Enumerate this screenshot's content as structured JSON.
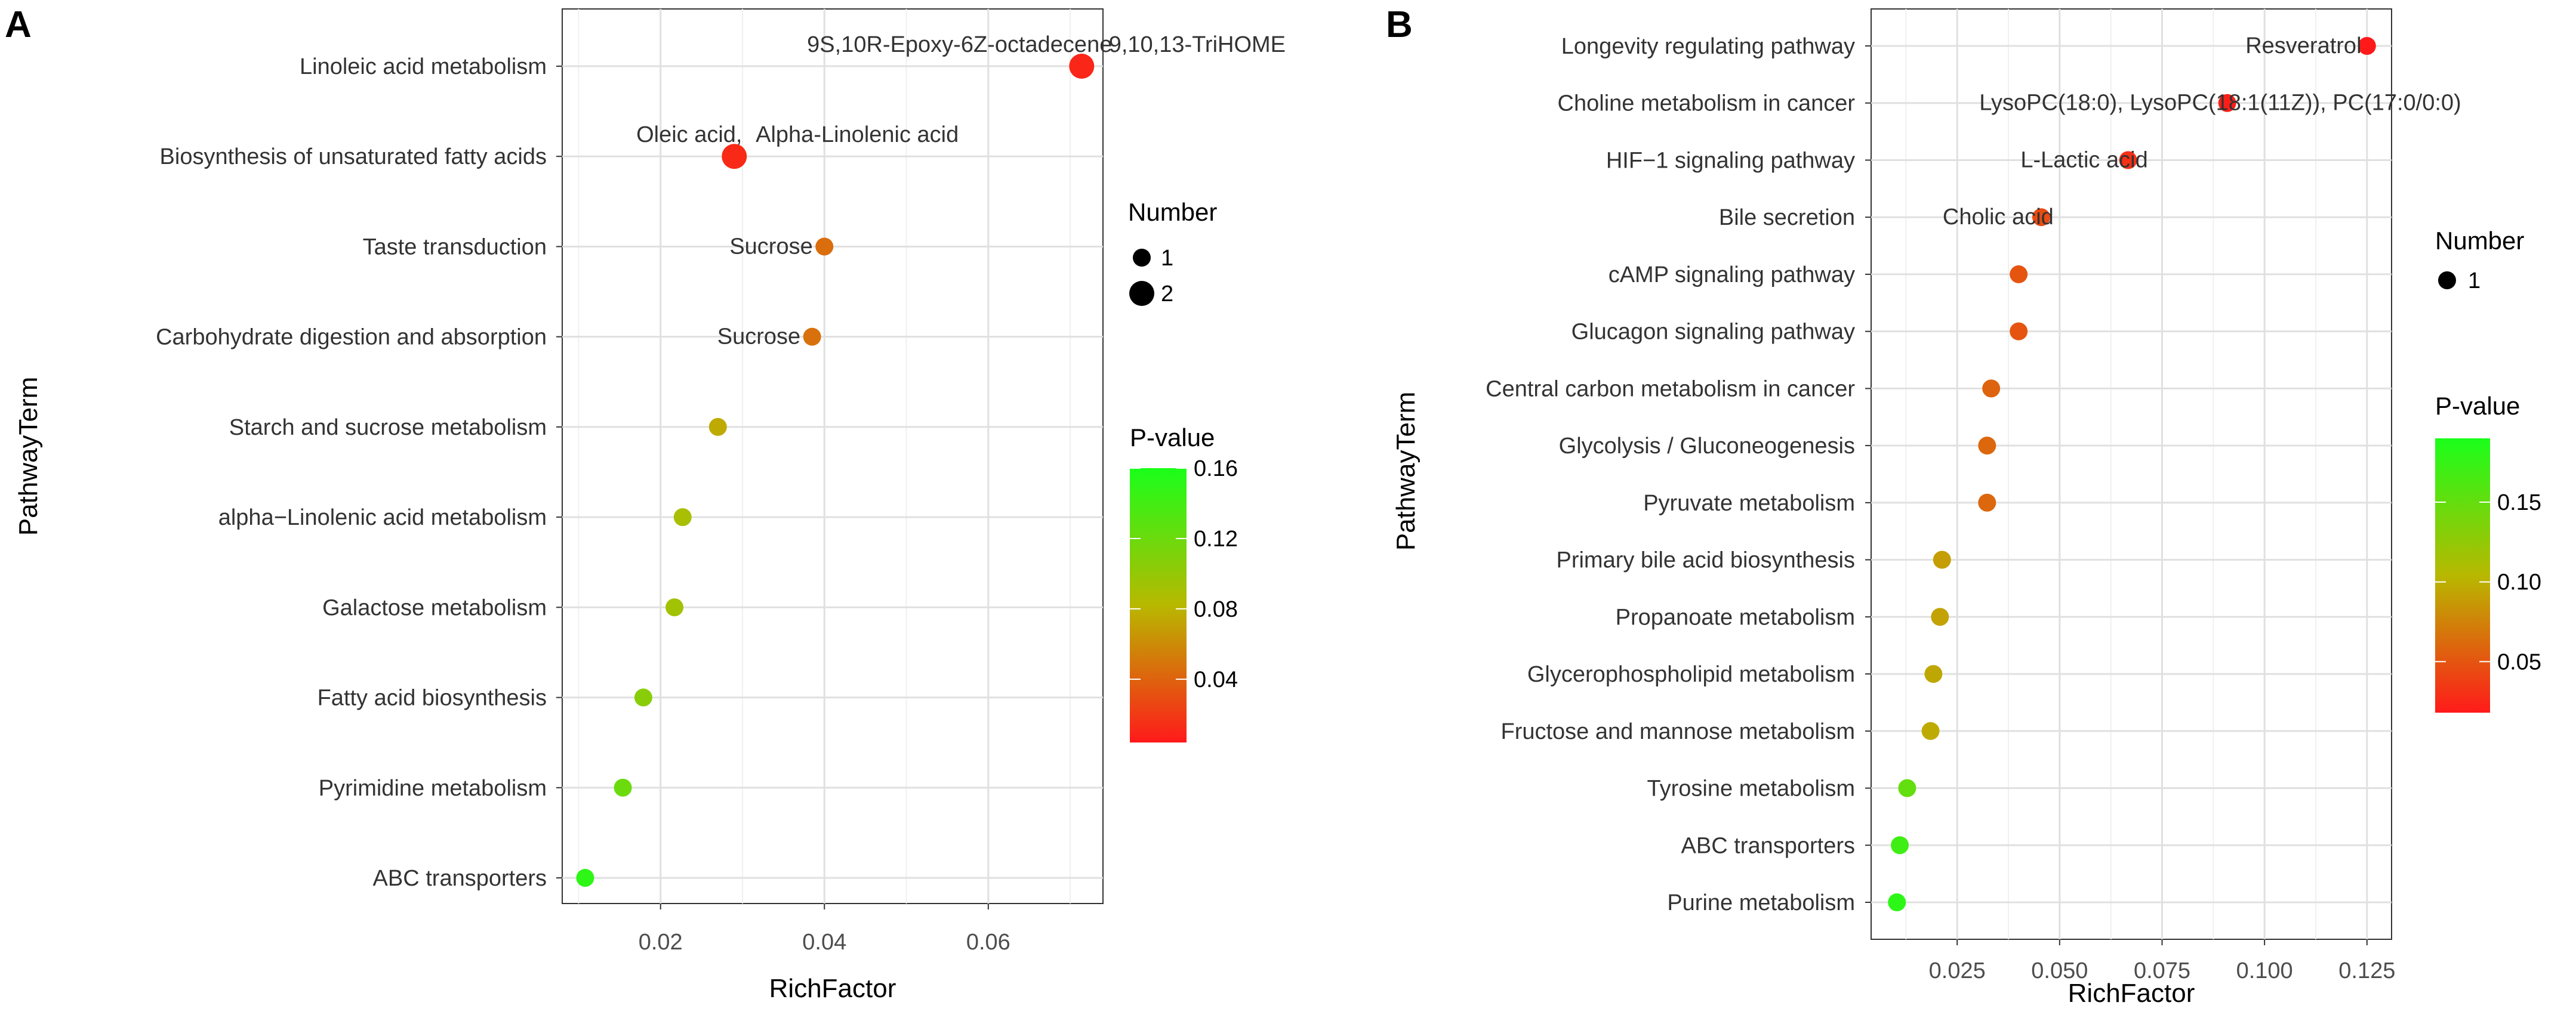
{
  "chart_data": [
    {
      "panel": "A",
      "type": "scatter",
      "title": "",
      "xlabel": "RichFactor",
      "ylabel": "PathwayTerm",
      "xlim": [
        0.008,
        0.074
      ],
      "xticks": [
        0.02,
        0.04,
        0.06
      ],
      "xtick_labels": [
        "0.02",
        "0.04",
        "0.06"
      ],
      "grid": true,
      "categories": [
        "Linoleic acid metabolism",
        "Biosynthesis of unsaturated fatty acids",
        "Taste transduction",
        "Carbohydrate digestion and absorption",
        "Starch and sucrose metabolism",
        "alpha−Linolenic acid metabolism",
        "Galactose metabolism",
        "Fatty acid biosynthesis",
        "Pyrimidine metabolism",
        "ABC transporters"
      ],
      "richfactor": [
        0.0714,
        0.029,
        0.04,
        0.0385,
        0.027,
        0.0227,
        0.0217,
        0.0179,
        0.0154,
        0.0108
      ],
      "number": [
        2,
        2,
        1,
        1,
        1,
        1,
        1,
        1,
        1,
        1
      ],
      "pvalue": [
        0.01,
        0.012,
        0.045,
        0.047,
        0.075,
        0.09,
        0.093,
        0.105,
        0.12,
        0.15
      ],
      "annotations": [
        {
          "category_index": 0,
          "text": "9S,10R-Epoxy-6Z-octadecene",
          "x": 0.0565
        },
        {
          "category_index": 0,
          "text": "9,10,13-TriHOME",
          "x": 0.0855
        },
        {
          "category_index": 1,
          "text": "Oleic acid,",
          "x": 0.0235
        },
        {
          "category_index": 1,
          "text": "Alpha-Linolenic acid",
          "x": 0.044
        },
        {
          "category_index": 2,
          "text": "Sucrose",
          "x": 0.0335
        },
        {
          "category_index": 3,
          "text": "Sucrose",
          "x": 0.032
        }
      ],
      "legend_size": {
        "title": "Number",
        "entries": [
          {
            "label": "1",
            "value": 1
          },
          {
            "label": "2",
            "value": 2
          }
        ]
      },
      "legend_color": {
        "title": "P-value",
        "range": [
          0.004,
          0.16
        ],
        "ticks": [
          0.04,
          0.08,
          0.12,
          0.16
        ],
        "tick_labels": [
          "0.04",
          "0.08",
          "0.12",
          "0.16"
        ],
        "low_color": "#ff1a1a",
        "high_color": "#1aff1a"
      }
    },
    {
      "panel": "B",
      "type": "scatter",
      "title": "",
      "xlabel": "RichFactor",
      "ylabel": "PathwayTerm",
      "xlim": [
        0.004,
        0.131
      ],
      "xticks": [
        0.025,
        0.05,
        0.075,
        0.1,
        0.125
      ],
      "xtick_labels": [
        "0.025",
        "0.050",
        "0.075",
        "0.100",
        "0.125"
      ],
      "grid": true,
      "categories": [
        "Longevity regulating pathway",
        "Choline metabolism in cancer",
        "HIF−1 signaling pathway",
        "Bile secretion",
        "cAMP signaling pathway",
        "Glucagon signaling pathway",
        "Central carbon metabolism in cancer",
        "Glycolysis / Gluconeogenesis",
        "Pyruvate metabolism",
        "Primary bile acid biosynthesis",
        "Propanoate metabolism",
        "Glycerophospholipid metabolism",
        "Fructose and mannose metabolism",
        "Tyrosine metabolism",
        "ABC transporters",
        "Purine metabolism"
      ],
      "richfactor": [
        0.125,
        0.0909,
        0.0667,
        0.0455,
        0.04,
        0.04,
        0.0333,
        0.0323,
        0.0323,
        0.0213,
        0.0208,
        0.0192,
        0.0185,
        0.0128,
        0.011,
        0.0103
      ],
      "number": [
        1,
        1,
        1,
        1,
        1,
        1,
        1,
        1,
        1,
        1,
        1,
        1,
        1,
        1,
        1,
        1
      ],
      "pvalue": [
        0.012,
        0.02,
        0.03,
        0.045,
        0.05,
        0.05,
        0.058,
        0.06,
        0.06,
        0.09,
        0.092,
        0.095,
        0.097,
        0.15,
        0.17,
        0.18
      ],
      "annotations": [
        {
          "category_index": 0,
          "text": "Resveratrol",
          "x": 0.1095
        },
        {
          "category_index": 1,
          "text": "LysoPC(18:0), LysoPC(18:1(11Z)), PC(17:0/0:0)",
          "x": 0.0892
        },
        {
          "category_index": 2,
          "text": "L-Lactic acid",
          "x": 0.056
        },
        {
          "category_index": 3,
          "text": "Cholic acid",
          "x": 0.035
        }
      ],
      "legend_size": {
        "title": "Number",
        "entries": [
          {
            "label": "1",
            "value": 1
          }
        ]
      },
      "legend_color": {
        "title": "P-value",
        "range": [
          0.018,
          0.19
        ],
        "ticks": [
          0.05,
          0.1,
          0.15
        ],
        "tick_labels": [
          "0.05",
          "0.10",
          "0.15"
        ],
        "low_color": "#ff1a1a",
        "high_color": "#1aff1a"
      }
    }
  ],
  "panel_letters": [
    "A",
    "B"
  ]
}
